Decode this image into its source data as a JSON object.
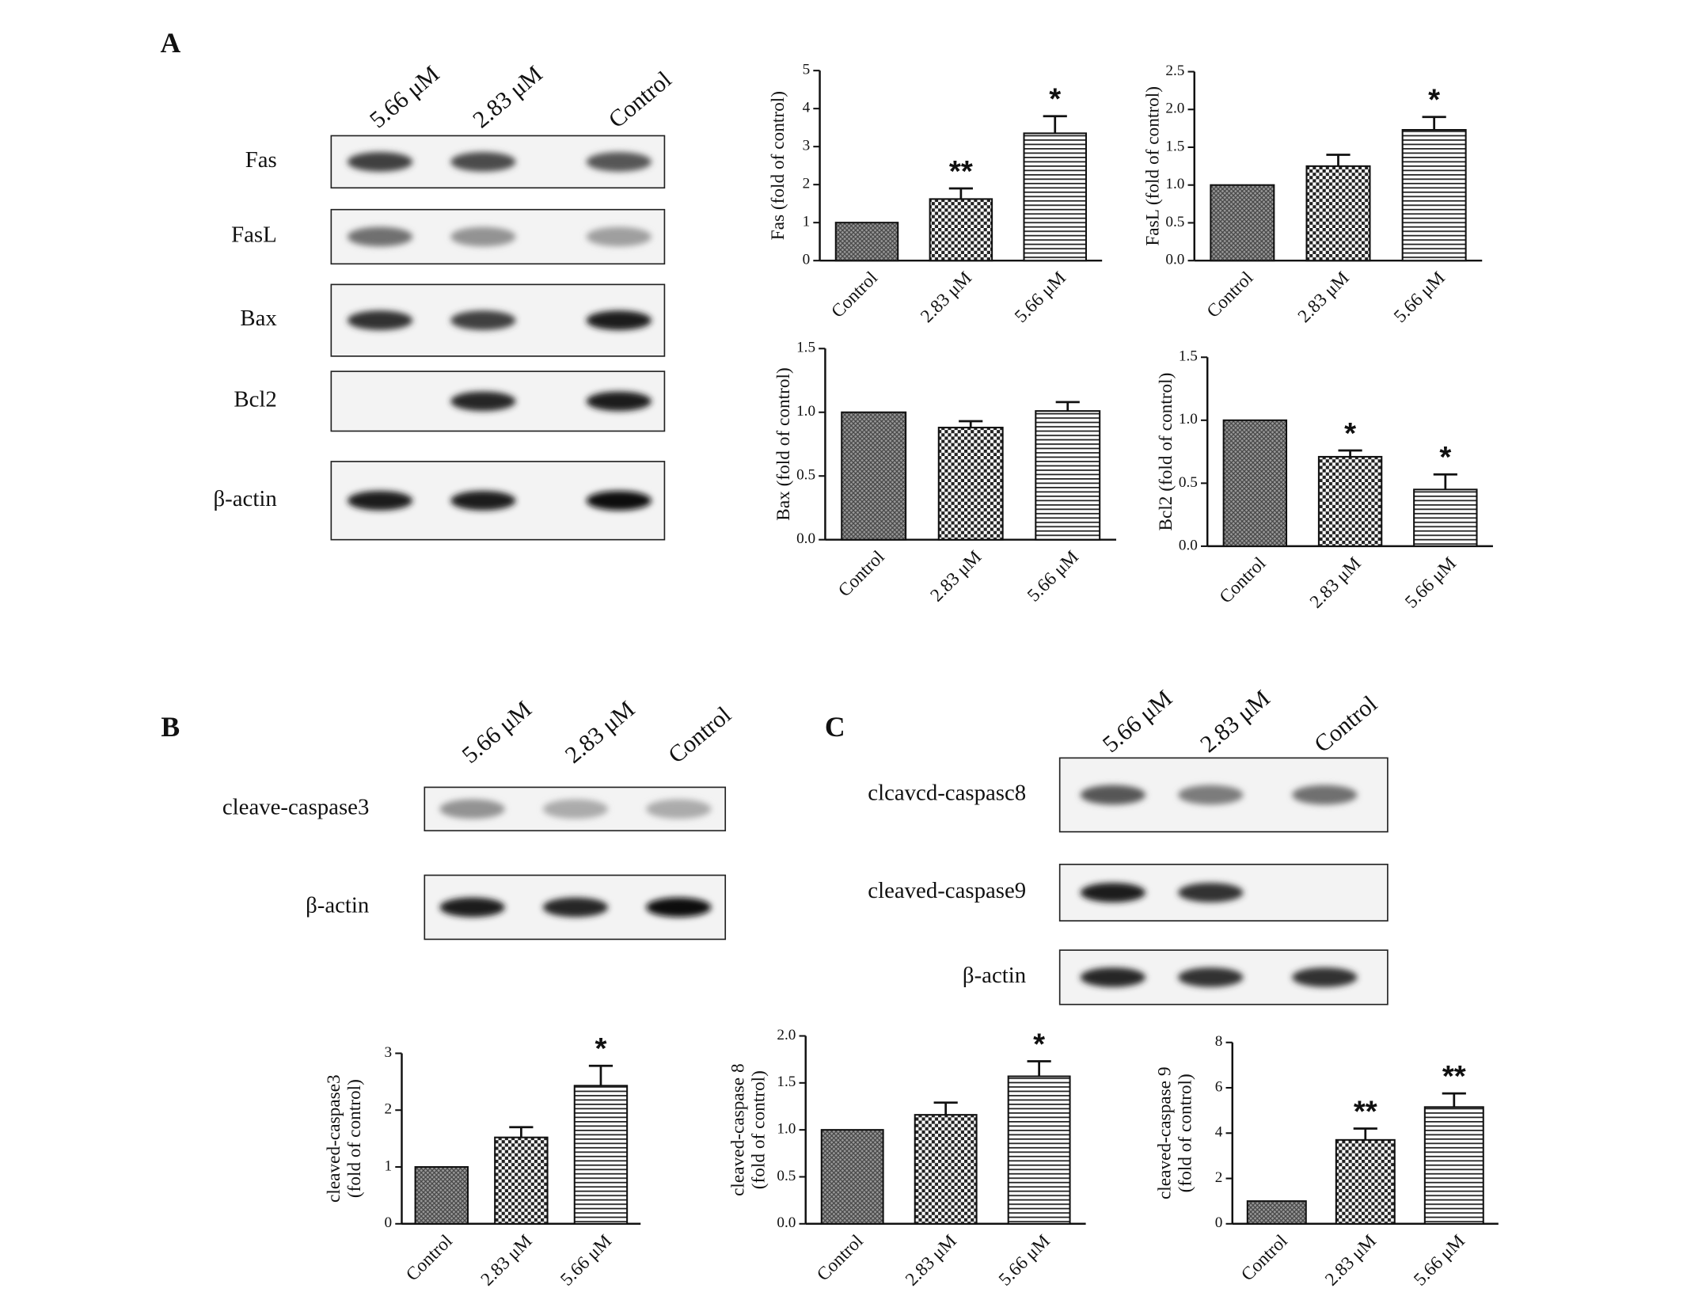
{
  "chart_data": [
    {
      "type": "bar",
      "ylabel": [
        "Fas (fold of control)"
      ],
      "categories": [
        "Control",
        "2.83 μM",
        "5.66 μM"
      ],
      "values": [
        1,
        1.62,
        3.35
      ],
      "errors": [
        null,
        0.28,
        0.45
      ],
      "annotations": [
        null,
        "**",
        "*"
      ],
      "ylim": [
        0,
        5
      ],
      "yticks": [
        0,
        1,
        2,
        3,
        4,
        5
      ]
    },
    {
      "type": "bar",
      "ylabel": [
        "FasL (fold of control)"
      ],
      "categories": [
        "Control",
        "2.83 μM",
        "5.66 μM"
      ],
      "values": [
        1,
        1.25,
        1.73
      ],
      "errors": [
        null,
        0.15,
        0.17
      ],
      "annotations": [
        null,
        null,
        "*"
      ],
      "ylim": [
        0,
        2.5
      ],
      "yticks": [
        {
          "value": 0,
          "label": "0.0"
        },
        0.5,
        {
          "value": 1,
          "label": "1.0"
        },
        1.5,
        {
          "value": 2,
          "label": "2.0"
        },
        2.5
      ]
    },
    {
      "type": "bar",
      "ylabel": [
        "Bax (fold of control)"
      ],
      "categories": [
        "Control",
        "2.83 μM",
        "5.66 μM"
      ],
      "values": [
        1,
        0.88,
        1.01
      ],
      "errors": [
        null,
        0.05,
        0.07
      ],
      "annotations": [
        null,
        null,
        null
      ],
      "ylim": [
        0,
        1.5
      ],
      "yticks": [
        {
          "value": 0,
          "label": "0.0"
        },
        0.5,
        {
          "value": 1,
          "label": "1.0"
        },
        1.5
      ]
    },
    {
      "type": "bar",
      "ylabel": [
        "Bcl2 (fold of control)"
      ],
      "categories": [
        "Control",
        "2.83 μM",
        "5.66 μM"
      ],
      "values": [
        1,
        0.71,
        0.45
      ],
      "errors": [
        null,
        0.05,
        0.12
      ],
      "annotations": [
        null,
        "*",
        "*"
      ],
      "ylim": [
        0,
        1.5
      ],
      "yticks": [
        {
          "value": 0,
          "label": "0.0"
        },
        0.5,
        {
          "value": 1,
          "label": "1.0"
        },
        1.5
      ]
    },
    {
      "type": "bar",
      "ylabel": [
        "cleaved-caspase3",
        "(fold of control)"
      ],
      "categories": [
        "Control",
        "2.83 μM",
        "5.66 μM"
      ],
      "values": [
        1,
        1.52,
        2.43
      ],
      "errors": [
        null,
        0.18,
        0.35
      ],
      "annotations": [
        null,
        null,
        "*"
      ],
      "ylim": [
        0,
        3
      ],
      "yticks": [
        0,
        1,
        2,
        3
      ]
    },
    {
      "type": "bar",
      "ylabel": [
        "cleaved-caspase 8",
        "(fold of control)"
      ],
      "categories": [
        "Control",
        "2.83 μM",
        "5.66 μM"
      ],
      "values": [
        1,
        1.16,
        1.57
      ],
      "errors": [
        null,
        0.13,
        0.16
      ],
      "annotations": [
        null,
        null,
        "*"
      ],
      "ylim": [
        0,
        2
      ],
      "yticks": [
        {
          "value": 0,
          "label": "0.0"
        },
        0.5,
        {
          "value": 1,
          "label": "1.0"
        },
        1.5,
        {
          "value": 2,
          "label": "2.0"
        }
      ]
    },
    {
      "type": "bar",
      "ylabel": [
        "cleaved-caspase 9",
        "(fold of control)"
      ],
      "categories": [
        "Control",
        "2.83 μM",
        "5.66 μM"
      ],
      "values": [
        1,
        3.7,
        5.15
      ],
      "errors": [
        null,
        0.5,
        0.6
      ],
      "annotations": [
        null,
        "**",
        "**"
      ],
      "ylim": [
        0,
        8
      ],
      "yticks": [
        0,
        2,
        4,
        6,
        8
      ]
    }
  ],
  "blots": [
    {
      "panel": "A",
      "lanes": [
        "5.66 μM",
        "2.83 μM",
        "Control"
      ],
      "rows": [
        "Fas",
        "FasL",
        "Bax",
        "Bcl2",
        "β-actin"
      ]
    },
    {
      "panel": "B",
      "lanes": [
        "5.66 μM",
        "2.83 μM",
        "Control"
      ],
      "rows": [
        "cleave-caspase3",
        "β-actin"
      ]
    },
    {
      "panel": "C",
      "lanes": [
        "5.66 μM",
        "2.83 μM",
        "Control"
      ],
      "rows": [
        "clcavcd-caspasc8",
        "cleaved-caspase9",
        "β-actin"
      ]
    }
  ]
}
